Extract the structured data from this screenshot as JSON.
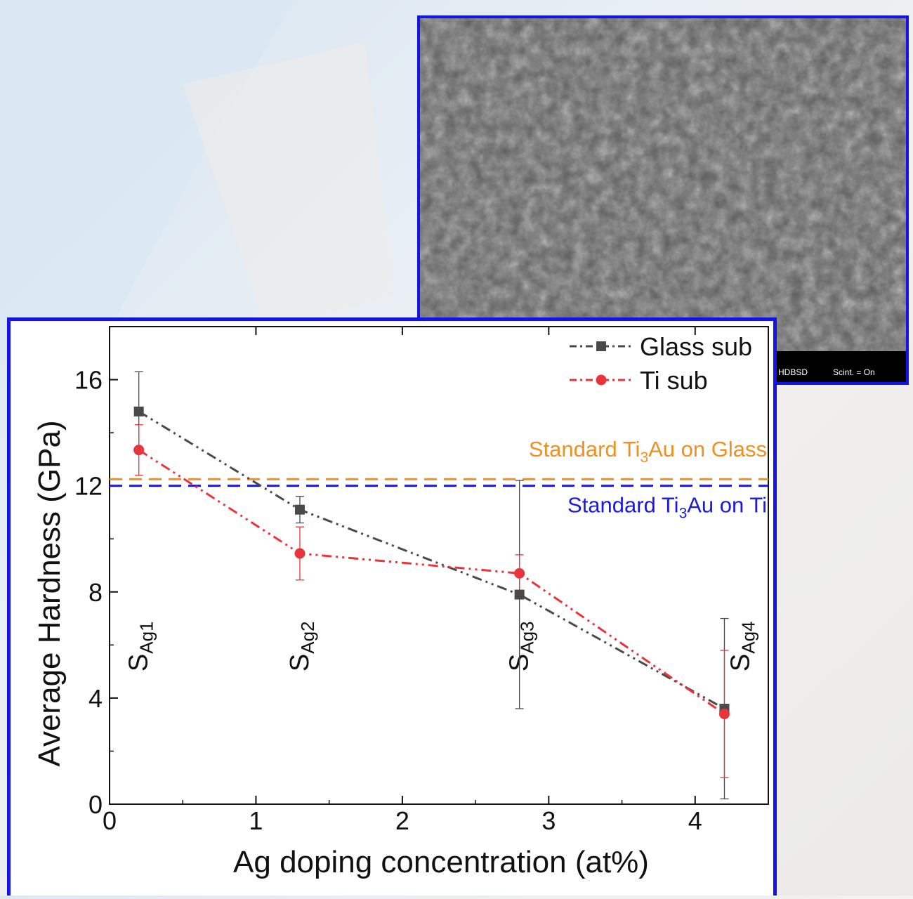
{
  "sem_inset": {
    "footer_detector": "HDBSD",
    "footer_scint": "Scint. = On"
  },
  "chart_data": {
    "type": "line",
    "xlabel": "Ag doping concentration (at%)",
    "ylabel": "Average Hardness (GPa)",
    "xlim": [
      0,
      4.5
    ],
    "ylim": [
      0,
      18
    ],
    "x_ticks": [
      0,
      1,
      2,
      3,
      4
    ],
    "y_ticks": [
      0,
      4,
      8,
      12,
      16
    ],
    "grid": false,
    "legend_position": "top-right",
    "series": [
      {
        "name": "Glass sub",
        "color": "#4a4a4a",
        "marker": "square",
        "x": [
          0.2,
          1.3,
          2.8,
          4.2
        ],
        "y": [
          14.8,
          11.1,
          7.9,
          3.6
        ],
        "err": [
          1.5,
          0.5,
          4.3,
          3.4
        ]
      },
      {
        "name": "Ti sub",
        "color": "#e8343a",
        "marker": "circle",
        "x": [
          0.2,
          1.3,
          2.8,
          4.2
        ],
        "y": [
          13.35,
          9.45,
          8.7,
          3.4
        ],
        "err": [
          0.95,
          1.0,
          0.7,
          2.4
        ]
      }
    ],
    "reference_lines": [
      {
        "y": 12.25,
        "color": "#f0901e",
        "label_prefix": "Standard Ti",
        "label_sub": "3",
        "label_suffix": "Au on Glass"
      },
      {
        "y": 12.0,
        "color": "#1a1ae0",
        "label_prefix": "Standard Ti",
        "label_sub": "3",
        "label_suffix": "Au on Ti"
      }
    ],
    "sample_labels": [
      {
        "x": 0.2,
        "main": "S",
        "sub": "Ag1"
      },
      {
        "x": 1.3,
        "main": "S",
        "sub": "Ag2"
      },
      {
        "x": 2.8,
        "main": "S",
        "sub": "Ag3"
      },
      {
        "x": 4.2,
        "main": "S",
        "sub": "Ag4"
      }
    ]
  }
}
